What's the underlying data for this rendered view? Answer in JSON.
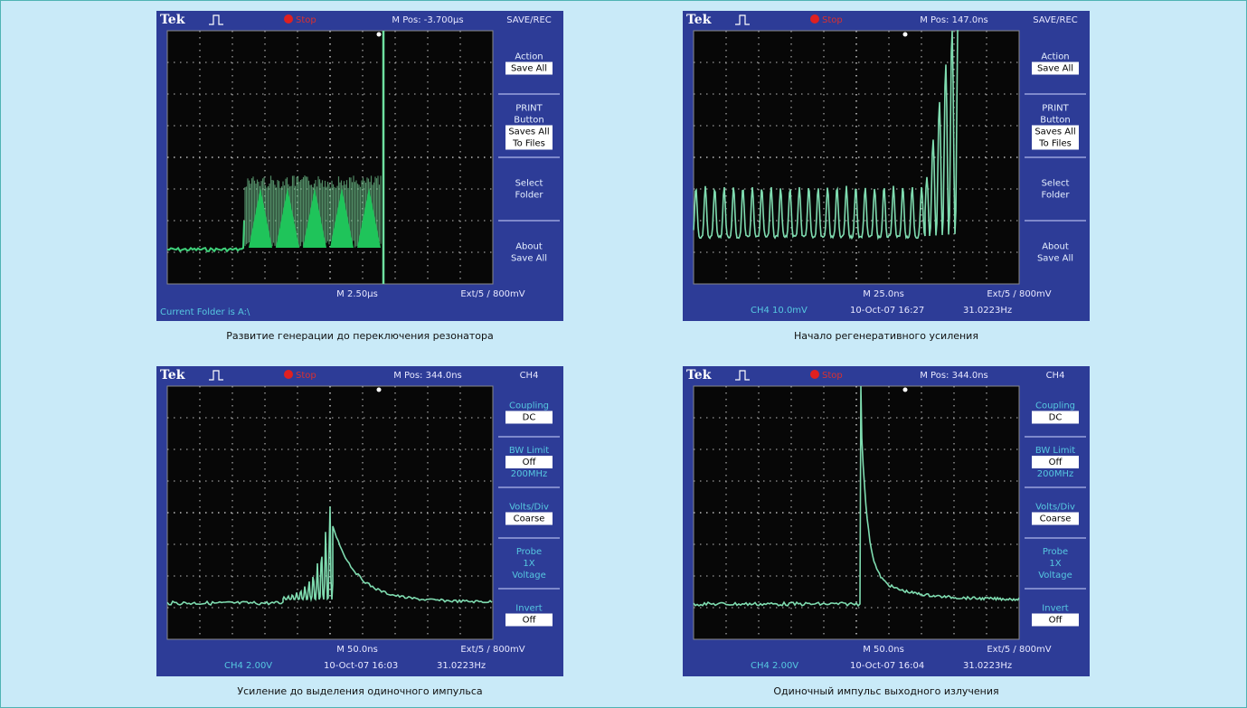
{
  "panels": [
    {
      "header": {
        "brand": "Tek",
        "status": "Stop",
        "position": "M Pos: -3.700µs",
        "menu_title": "SAVE/REC"
      },
      "menu": [
        {
          "label": [
            "Action"
          ],
          "box": [
            "Save All"
          ]
        },
        {
          "label": [
            "PRINT",
            "Button"
          ],
          "box": [
            "Saves All",
            "To Files"
          ]
        },
        {
          "label": [
            "Select",
            "Folder"
          ]
        },
        {
          "label": [
            "About",
            "Save All"
          ]
        }
      ],
      "footer": {
        "timebase": "M 2.50µs",
        "trigger": "Ext/5 / 800mV",
        "status_line": "Current Folder is A:\\"
      },
      "caption": "Развитие генерации до переключения резонатора"
    },
    {
      "header": {
        "brand": "Tek",
        "status": "Stop",
        "position": "M Pos: 147.0ns",
        "menu_title": "SAVE/REC"
      },
      "menu": [
        {
          "label": [
            "Action"
          ],
          "box": [
            "Save All"
          ]
        },
        {
          "label": [
            "PRINT",
            "Button"
          ],
          "box": [
            "Saves All",
            "To Files"
          ]
        },
        {
          "label": [
            "Select",
            "Folder"
          ]
        },
        {
          "label": [
            "About",
            "Save All"
          ]
        }
      ],
      "footer": {
        "timebase": "M 25.0ns",
        "trigger": "Ext/5 / 800mV",
        "channel": "CH4  10.0mV",
        "date": "10-Oct-07 16:27",
        "frequency": "31.0223Hz"
      },
      "caption": "Начало регенеративного усиления"
    },
    {
      "header": {
        "brand": "Tek",
        "status": "Stop",
        "position": "M Pos: 344.0ns",
        "menu_title": "CH4"
      },
      "menu": [
        {
          "label": [
            "Coupling"
          ],
          "box": [
            "DC"
          ]
        },
        {
          "label": [
            "BW Limit"
          ],
          "box": [
            "Off"
          ],
          "note": [
            "200MHz"
          ]
        },
        {
          "label": [
            "Volts/Div"
          ],
          "box": [
            "Coarse"
          ]
        },
        {
          "label": [
            "Probe",
            "1X",
            "Voltage"
          ]
        },
        {
          "label": [
            "Invert"
          ],
          "box": [
            "Off"
          ]
        }
      ],
      "footer": {
        "timebase": "M 50.0ns",
        "trigger": "Ext/5 / 800mV",
        "channel": "CH4  2.00V",
        "date": "10-Oct-07 16:03",
        "frequency": "31.0223Hz"
      },
      "caption": "Усиление до выделения одиночного импульса"
    },
    {
      "header": {
        "brand": "Tek",
        "status": "Stop",
        "position": "M Pos: 344.0ns",
        "menu_title": "CH4"
      },
      "menu": [
        {
          "label": [
            "Coupling"
          ],
          "box": [
            "DC"
          ]
        },
        {
          "label": [
            "BW Limit"
          ],
          "box": [
            "Off"
          ],
          "note": [
            "200MHz"
          ]
        },
        {
          "label": [
            "Volts/Div"
          ],
          "box": [
            "Coarse"
          ]
        },
        {
          "label": [
            "Probe",
            "1X",
            "Voltage"
          ]
        },
        {
          "label": [
            "Invert"
          ],
          "box": [
            "Off"
          ]
        }
      ],
      "footer": {
        "timebase": "M 50.0ns",
        "trigger": "Ext/5 / 800mV",
        "channel": "CH4  2.00V",
        "date": "10-Oct-07 16:04",
        "frequency": "31.0223Hz"
      },
      "caption": "Одиночный импульс выходного излучения"
    }
  ]
}
